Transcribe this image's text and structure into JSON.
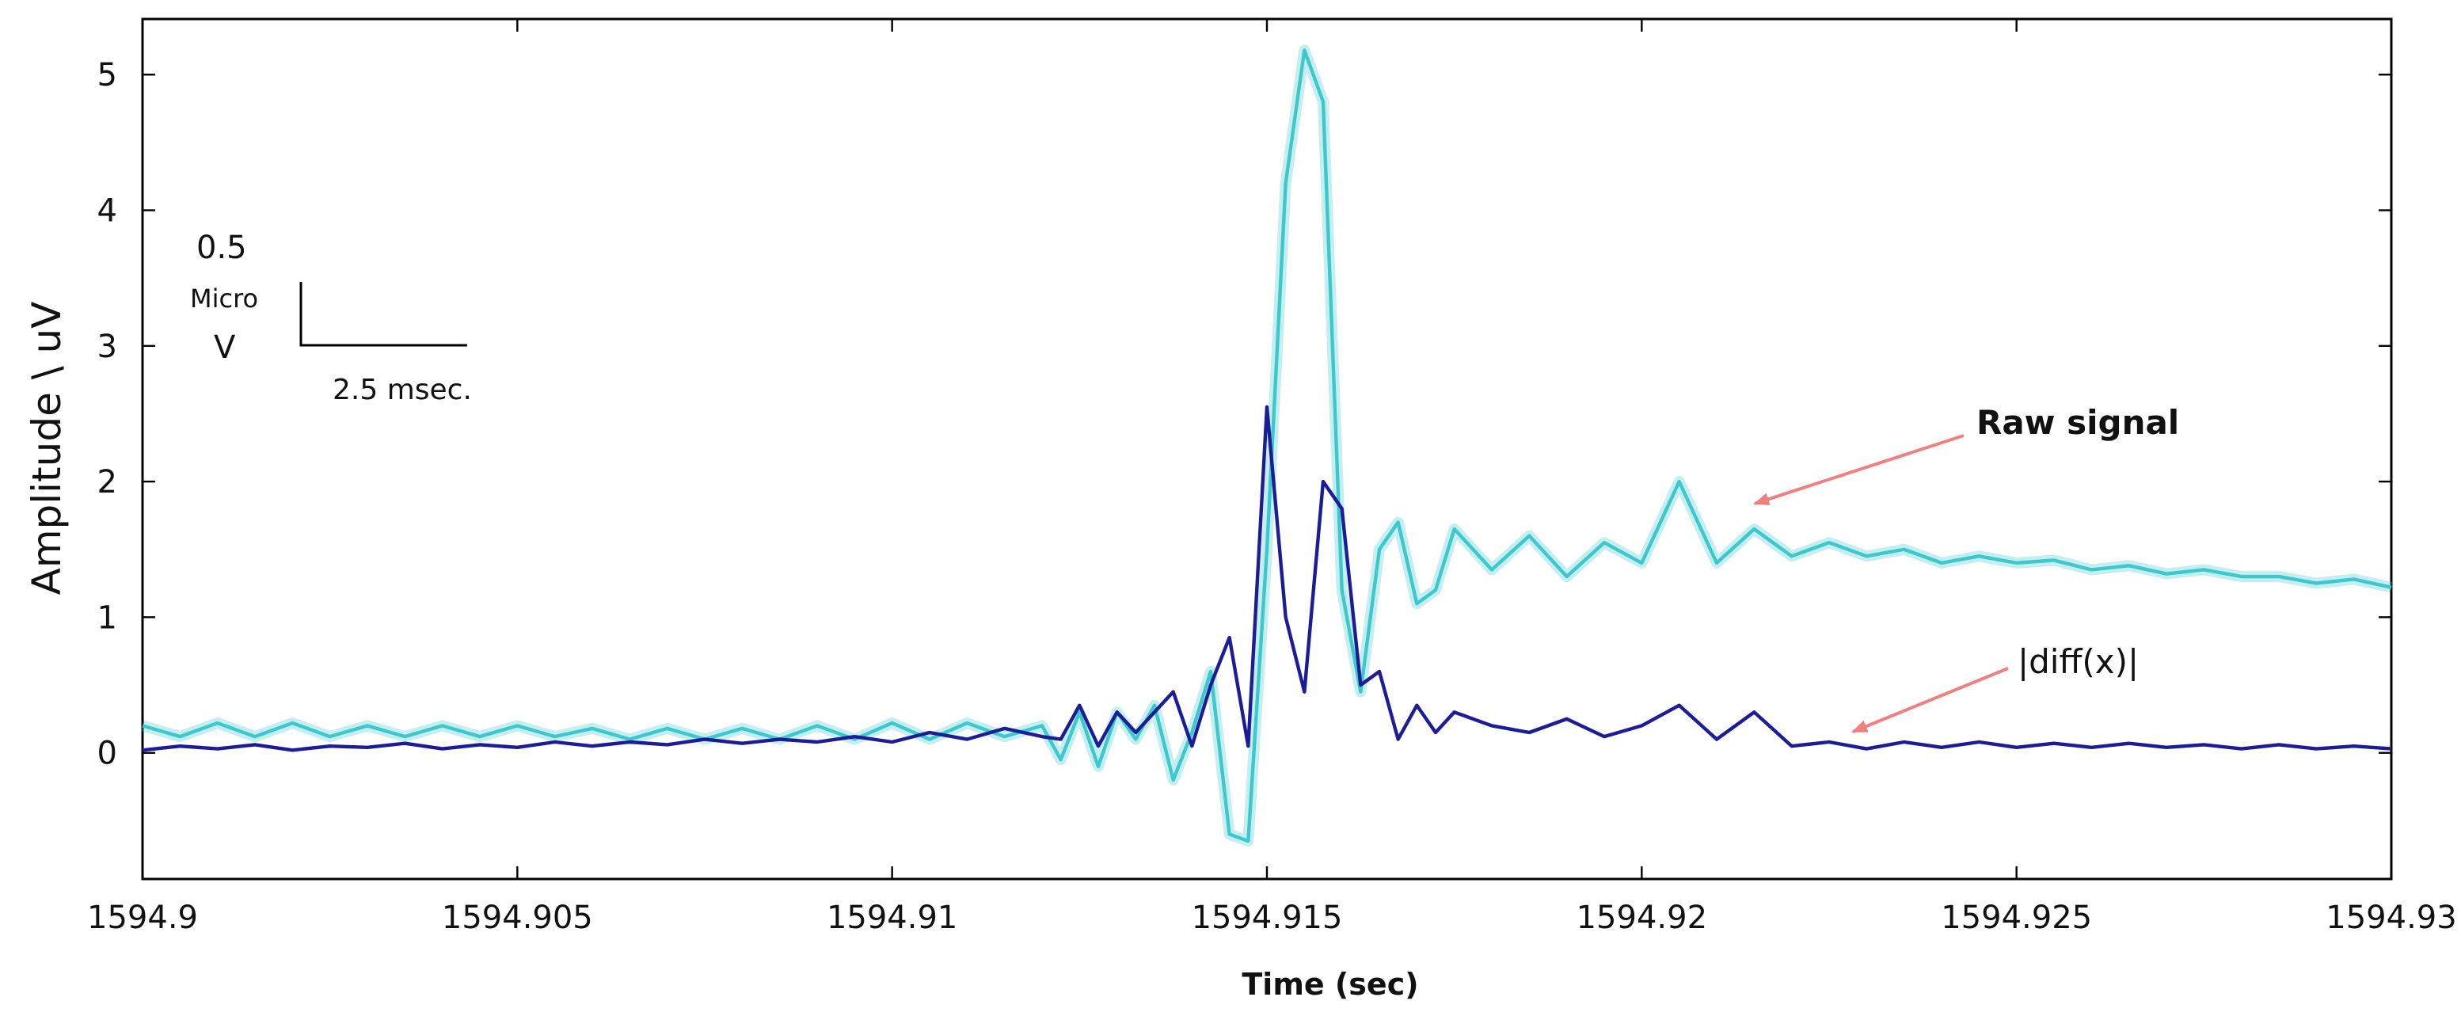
{
  "chart_data": {
    "type": "line",
    "xlabel": "Time (sec)",
    "ylabel": "Amplitude \\ uV",
    "x": [
      1594.9,
      1594.9005,
      1594.901,
      1594.9015,
      1594.902,
      1594.9025,
      1594.903,
      1594.9035,
      1594.904,
      1594.9045,
      1594.905,
      1594.9055,
      1594.906,
      1594.9065,
      1594.907,
      1594.9075,
      1594.908,
      1594.9085,
      1594.909,
      1594.9095,
      1594.91,
      1594.9105,
      1594.911,
      1594.9115,
      1594.912,
      1594.91225,
      1594.9125,
      1594.91275,
      1594.913,
      1594.91325,
      1594.9135,
      1594.91375,
      1594.914,
      1594.91425,
      1594.9145,
      1594.91475,
      1594.915,
      1594.91525,
      1594.9155,
      1594.91575,
      1594.916,
      1594.91625,
      1594.9165,
      1594.91675,
      1594.917,
      1594.91725,
      1594.9175,
      1594.918,
      1594.9185,
      1594.919,
      1594.9195,
      1594.92,
      1594.9205,
      1594.921,
      1594.9215,
      1594.922,
      1594.9225,
      1594.923,
      1594.9235,
      1594.924,
      1594.9245,
      1594.925,
      1594.9255,
      1594.926,
      1594.9265,
      1594.927,
      1594.9275,
      1594.928,
      1594.9285,
      1594.929,
      1594.9295,
      1594.93
    ],
    "series": [
      {
        "name": "Raw signal",
        "color": "#3cc8cc",
        "values": [
          0.2,
          0.12,
          0.22,
          0.12,
          0.22,
          0.12,
          0.2,
          0.12,
          0.2,
          0.12,
          0.2,
          0.12,
          0.18,
          0.1,
          0.18,
          0.1,
          0.18,
          0.1,
          0.2,
          0.1,
          0.22,
          0.1,
          0.22,
          0.12,
          0.2,
          -0.05,
          0.3,
          -0.1,
          0.3,
          0.1,
          0.35,
          -0.2,
          0.15,
          0.6,
          -0.6,
          -0.65,
          1.5,
          4.2,
          5.18,
          4.8,
          1.2,
          0.45,
          1.5,
          1.7,
          1.1,
          1.2,
          1.65,
          1.35,
          1.6,
          1.3,
          1.55,
          1.4,
          2.0,
          1.4,
          1.65,
          1.45,
          1.55,
          1.45,
          1.5,
          1.4,
          1.45,
          1.4,
          1.42,
          1.35,
          1.38,
          1.32,
          1.35,
          1.3,
          1.3,
          1.25,
          1.28,
          1.22
        ]
      },
      {
        "name": "|diff(x)|",
        "color": "#1c1c96",
        "values": [
          0.02,
          0.05,
          0.03,
          0.06,
          0.02,
          0.05,
          0.04,
          0.07,
          0.03,
          0.06,
          0.04,
          0.08,
          0.05,
          0.08,
          0.06,
          0.1,
          0.07,
          0.1,
          0.08,
          0.12,
          0.08,
          0.15,
          0.1,
          0.18,
          0.12,
          0.1,
          0.35,
          0.05,
          0.3,
          0.15,
          0.3,
          0.45,
          0.05,
          0.5,
          0.85,
          0.05,
          2.55,
          1.0,
          0.45,
          2.0,
          1.8,
          0.5,
          0.6,
          0.1,
          0.35,
          0.15,
          0.3,
          0.2,
          0.15,
          0.25,
          0.12,
          0.2,
          0.35,
          0.1,
          0.3,
          0.05,
          0.08,
          0.03,
          0.08,
          0.04,
          0.08,
          0.04,
          0.07,
          0.04,
          0.07,
          0.04,
          0.06,
          0.03,
          0.06,
          0.03,
          0.05,
          0.03
        ]
      }
    ],
    "xlim": [
      1594.9,
      1594.93
    ],
    "xticks": [
      1594.9,
      1594.905,
      1594.91,
      1594.915,
      1594.92,
      1594.925,
      1594.93
    ],
    "ylim": [
      -0.93,
      5.41
    ],
    "yticks": [
      0,
      1,
      2,
      3,
      4,
      5
    ],
    "scale_bar_labels": [
      "0.5",
      "Micro",
      "V",
      "2.5 msec."
    ],
    "annotations": [
      "Raw signal",
      "|diff(x)|"
    ],
    "annotation_color": "#f08080"
  }
}
